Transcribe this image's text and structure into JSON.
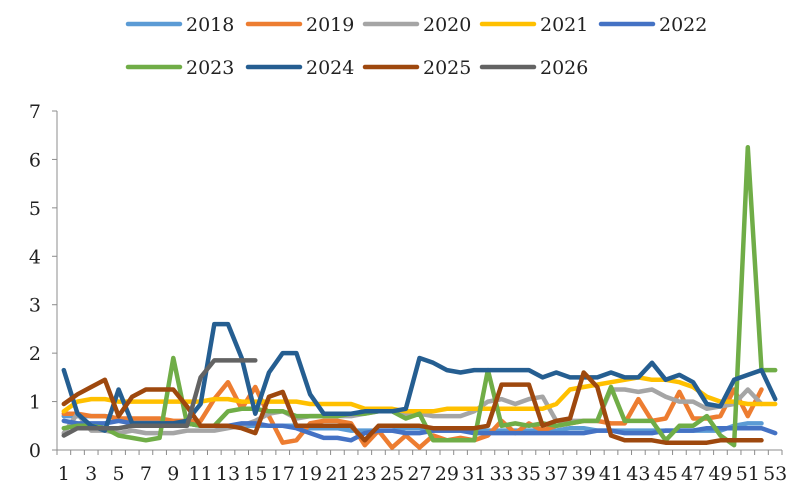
{
  "chart_data": {
    "type": "line",
    "x": [
      1,
      2,
      3,
      4,
      5,
      6,
      7,
      8,
      9,
      10,
      11,
      12,
      13,
      14,
      15,
      16,
      17,
      18,
      19,
      20,
      21,
      22,
      23,
      24,
      25,
      26,
      27,
      28,
      29,
      30,
      31,
      32,
      33,
      34,
      35,
      36,
      37,
      38,
      39,
      40,
      41,
      42,
      43,
      44,
      45,
      46,
      47,
      48,
      49,
      50,
      51,
      52,
      53
    ],
    "xtick_labels": [
      "1",
      "3",
      "5",
      "7",
      "9",
      "11",
      "13",
      "15",
      "17",
      "19",
      "21",
      "23",
      "25",
      "27",
      "29",
      "31",
      "33",
      "35",
      "37",
      "39",
      "41",
      "43",
      "45",
      "47",
      "49",
      "51",
      "53"
    ],
    "ylim": [
      0,
      7
    ],
    "yticks": [
      "0",
      "1",
      "2",
      "3",
      "4",
      "5",
      "6",
      "7"
    ],
    "legend_position": "top",
    "grid": false,
    "series": [
      {
        "name": "2018",
        "color": "#5b9bd5",
        "values": [
          0.7,
          0.7,
          0.7,
          0.7,
          0.65,
          0.6,
          0.6,
          0.6,
          0.55,
          0.55,
          0.5,
          0.5,
          0.5,
          0.5,
          0.5,
          0.5,
          0.5,
          0.5,
          0.45,
          0.45,
          0.45,
          0.4,
          0.4,
          0.4,
          0.4,
          0.45,
          0.45,
          0.4,
          0.4,
          0.4,
          0.4,
          0.4,
          0.4,
          0.4,
          0.4,
          0.4,
          0.4,
          0.45,
          0.45,
          0.4,
          0.4,
          0.4,
          0.4,
          0.4,
          0.4,
          0.4,
          0.4,
          0.4,
          0.4,
          0.5,
          0.55,
          0.55,
          null
        ]
      },
      {
        "name": "2019",
        "color": "#ed7d31",
        "values": [
          0.75,
          0.75,
          0.7,
          0.7,
          0.65,
          0.65,
          0.65,
          0.65,
          0.6,
          0.6,
          0.6,
          1.05,
          1.4,
          0.85,
          1.3,
          0.7,
          0.15,
          0.2,
          0.55,
          0.6,
          0.6,
          0.55,
          0.1,
          0.4,
          0.05,
          0.3,
          0.05,
          0.3,
          0.2,
          0.25,
          0.2,
          0.3,
          0.6,
          0.35,
          0.55,
          0.4,
          0.5,
          0.55,
          0.6,
          0.6,
          0.55,
          0.55,
          1.05,
          0.6,
          0.65,
          1.2,
          0.65,
          0.65,
          0.7,
          1.25,
          0.7,
          1.25,
          null
        ]
      },
      {
        "name": "2020",
        "color": "#a5a5a5",
        "values": [
          0.35,
          0.75,
          0.4,
          0.4,
          0.35,
          0.4,
          0.35,
          0.35,
          0.35,
          0.4,
          0.4,
          0.4,
          0.45,
          0.5,
          0.6,
          0.75,
          0.8,
          0.65,
          0.7,
          0.7,
          0.7,
          0.7,
          0.75,
          0.8,
          0.8,
          0.75,
          0.75,
          0.7,
          0.7,
          0.7,
          0.8,
          1.0,
          1.05,
          0.95,
          1.05,
          1.1,
          0.6,
          0.6,
          0.6,
          0.6,
          1.25,
          1.25,
          1.2,
          1.25,
          1.1,
          1.0,
          1.0,
          0.85,
          0.9,
          0.95,
          1.25,
          0.95,
          null
        ]
      },
      {
        "name": "2021",
        "color": "#ffc000",
        "values": [
          0.8,
          1.0,
          1.05,
          1.05,
          1.0,
          1.0,
          1.0,
          1.0,
          1.0,
          1.0,
          1.0,
          1.05,
          1.05,
          1.0,
          1.0,
          1.0,
          1.0,
          1.0,
          0.95,
          0.95,
          0.95,
          0.95,
          0.85,
          0.85,
          0.85,
          0.8,
          0.8,
          0.8,
          0.85,
          0.85,
          0.85,
          0.85,
          0.85,
          0.85,
          0.85,
          0.85,
          0.95,
          1.25,
          1.3,
          1.35,
          1.4,
          1.45,
          1.5,
          1.45,
          1.45,
          1.4,
          1.3,
          1.1,
          1.0,
          1.0,
          0.95,
          0.95,
          0.95
        ]
      },
      {
        "name": "2022",
        "color": "#4472c4",
        "values": [
          0.6,
          0.55,
          0.55,
          0.55,
          0.6,
          0.55,
          0.5,
          0.55,
          0.55,
          0.55,
          0.5,
          0.5,
          0.5,
          0.55,
          0.55,
          0.5,
          0.5,
          0.45,
          0.35,
          0.25,
          0.25,
          0.2,
          0.35,
          0.4,
          0.4,
          0.35,
          0.35,
          0.4,
          0.4,
          0.4,
          0.35,
          0.35,
          0.35,
          0.35,
          0.35,
          0.35,
          0.35,
          0.35,
          0.35,
          0.4,
          0.4,
          0.35,
          0.35,
          0.35,
          0.4,
          0.4,
          0.4,
          0.45,
          0.45,
          0.45,
          0.45,
          0.45,
          0.35
        ]
      },
      {
        "name": "2023",
        "color": "#70ad47",
        "values": [
          0.45,
          0.5,
          0.5,
          0.45,
          0.3,
          0.25,
          0.2,
          0.25,
          1.9,
          0.55,
          0.5,
          0.5,
          0.8,
          0.85,
          0.85,
          0.8,
          0.8,
          0.7,
          0.7,
          0.7,
          0.7,
          0.75,
          0.75,
          0.8,
          0.8,
          0.65,
          0.75,
          0.2,
          0.2,
          0.2,
          0.2,
          1.65,
          0.5,
          0.55,
          0.5,
          0.55,
          0.5,
          0.55,
          0.6,
          0.6,
          1.3,
          0.6,
          0.6,
          0.6,
          0.2,
          0.5,
          0.5,
          0.7,
          0.3,
          0.1,
          6.25,
          1.65,
          1.65
        ]
      },
      {
        "name": "2024",
        "color": "#255e91",
        "values": [
          1.65,
          0.75,
          0.5,
          0.4,
          1.25,
          0.55,
          0.55,
          0.55,
          0.55,
          0.6,
          0.95,
          2.6,
          2.6,
          1.9,
          0.75,
          1.6,
          2.0,
          2.0,
          1.15,
          0.75,
          0.75,
          0.75,
          0.8,
          0.8,
          0.8,
          0.85,
          1.9,
          1.8,
          1.65,
          1.6,
          1.65,
          1.65,
          1.65,
          1.65,
          1.65,
          1.5,
          1.6,
          1.5,
          1.5,
          1.5,
          1.6,
          1.5,
          1.5,
          1.8,
          1.45,
          1.55,
          1.4,
          0.95,
          0.9,
          1.45,
          1.55,
          1.65,
          1.05
        ]
      },
      {
        "name": "2025",
        "color": "#9e480e",
        "values": [
          0.95,
          1.15,
          1.3,
          1.45,
          0.7,
          1.1,
          1.25,
          1.25,
          1.25,
          0.9,
          0.5,
          0.5,
          0.5,
          0.45,
          0.35,
          1.1,
          1.2,
          0.5,
          0.5,
          0.5,
          0.5,
          0.5,
          0.2,
          0.5,
          0.5,
          0.5,
          0.5,
          0.45,
          0.45,
          0.45,
          0.45,
          0.5,
          1.35,
          1.35,
          1.35,
          0.5,
          0.6,
          0.65,
          1.6,
          1.3,
          0.3,
          0.2,
          0.2,
          0.2,
          0.15,
          0.15,
          0.15,
          0.15,
          0.2,
          0.2,
          0.2,
          0.2,
          null
        ]
      },
      {
        "name": "2026",
        "color": "#636363",
        "values": [
          0.3,
          0.45,
          0.45,
          0.45,
          0.45,
          0.5,
          0.5,
          0.5,
          0.5,
          0.5,
          1.5,
          1.85,
          1.85,
          1.85,
          1.85,
          null,
          null,
          null,
          null,
          null,
          null,
          null,
          null,
          null,
          null,
          null,
          null,
          null,
          null,
          null,
          null,
          null,
          null,
          null,
          null,
          null,
          null,
          null,
          null,
          null,
          null,
          null,
          null,
          null,
          null,
          null,
          null,
          null,
          null,
          null,
          null,
          null,
          null
        ]
      }
    ]
  }
}
